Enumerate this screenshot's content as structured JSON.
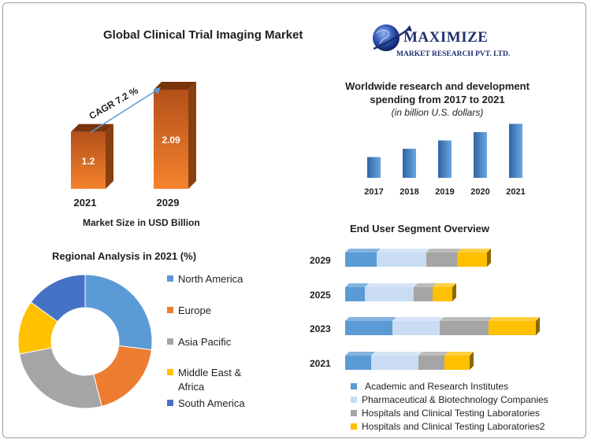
{
  "market_title": "Global Clinical Trial Imaging Market",
  "logo": {
    "name": "MAXIMIZE",
    "subtitle": "MARKET RESEARCH PVT. LTD."
  },
  "rnd": {
    "title_line1": "Worldwide research and development",
    "title_line2": "spending from 2017 to 2021",
    "title_line3": "(in billion U.S. dollars)"
  },
  "segment_title": "End User Segment Overview",
  "regional_title": "Regional Analysis in 2021 (%)",
  "market_size_label": "Market Size in USD Billion",
  "colors": {
    "blue": "#5b9bd5",
    "lightblue": "#c9dcf3",
    "gray": "#a5a5a5",
    "yellow": "#ffc000",
    "darkblue": "#4472c4",
    "orange": "#ed7d31",
    "bar3d": "#f07b2a",
    "bar3d_dark": "#8a3f10",
    "rnd_bar": "#4a86c5"
  },
  "chart_data": [
    {
      "type": "bar",
      "name": "market_size",
      "categories": [
        "2021",
        "2029"
      ],
      "values": [
        1.2,
        2.09
      ],
      "annotation": "CAGR 7.2 %",
      "xlabel": "Market Size in USD Billion"
    },
    {
      "type": "bar",
      "name": "rnd_spending",
      "title": "Worldwide research and development spending from 2017 to 2021",
      "subtitle": "(in billion U.S. dollars)",
      "categories": [
        "2017",
        "2018",
        "2019",
        "2020",
        "2021"
      ],
      "values": [
        1.0,
        1.4,
        1.8,
        2.2,
        2.6
      ]
    },
    {
      "type": "bar",
      "name": "end_user_segment",
      "orientation": "horizontal",
      "stacked": true,
      "title": "End User Segment Overview",
      "categories": [
        "2029",
        "2025",
        "2023",
        "2021"
      ],
      "series": [
        {
          "name": "Academic and Research Institutes",
          "color": "#5b9bd5",
          "values": [
            40,
            25,
            60,
            33
          ]
        },
        {
          "name": "Pharmaceutical & Biotechnology Companies",
          "color": "#c9dcf3",
          "values": [
            63,
            62,
            60,
            60
          ]
        },
        {
          "name": "Hospitals and Clinical Testing Laboratories",
          "color": "#a5a5a5",
          "values": [
            39,
            24,
            62,
            33
          ]
        },
        {
          "name": "Hospitals and Clinical Testing Laboratories2",
          "color": "#ffc000",
          "values": [
            38,
            25,
            60,
            32
          ]
        }
      ],
      "legend": "bottom"
    },
    {
      "type": "pie",
      "name": "regional_analysis",
      "donut": true,
      "title": "Regional Analysis in 2021 (%)",
      "labels": [
        "North America",
        "Europe",
        "Asia Pacific",
        "Middle East & Africa",
        "South America"
      ],
      "values": [
        27,
        19,
        26,
        13,
        15
      ],
      "colors": [
        "#5b9bd5",
        "#ed7d31",
        "#a5a5a5",
        "#ffc000",
        "#4472c4"
      ],
      "legend": "right"
    }
  ]
}
